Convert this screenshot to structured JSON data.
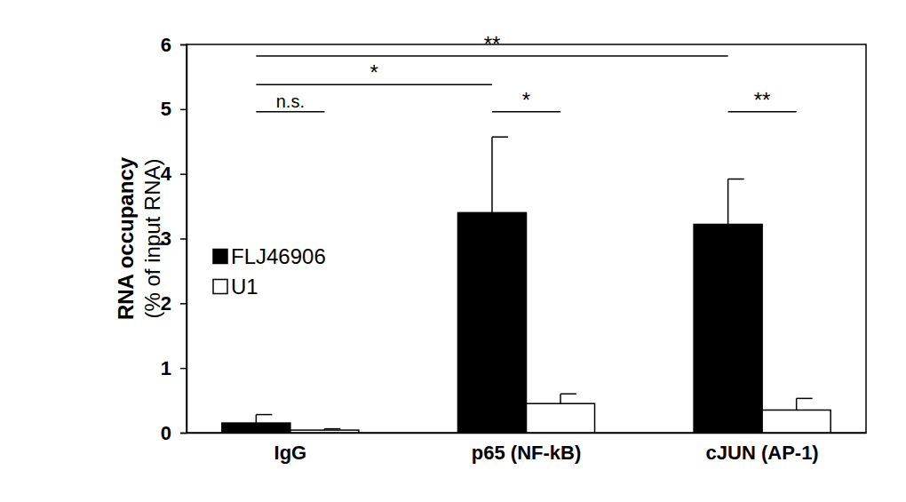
{
  "chart_data": {
    "type": "bar",
    "y_label": [
      "RNA occupancy",
      "(% of input RNA)"
    ],
    "categories": [
      "IgG",
      "p65 (NF-kB)",
      "cJUN (AP-1)"
    ],
    "series": [
      {
        "name": "FLJ46906",
        "color": "#000000",
        "values": [
          0.15,
          3.4,
          3.22
        ],
        "errors": [
          0.13,
          1.17,
          0.7
        ]
      },
      {
        "name": "U1",
        "color": "#ffffff",
        "values": [
          0.04,
          0.45,
          0.35
        ],
        "errors": [
          0.02,
          0.15,
          0.18
        ]
      }
    ],
    "ylim": [
      0,
      6
    ],
    "yticks": [
      0,
      1,
      2,
      3,
      4,
      5,
      6
    ],
    "legend": "left",
    "annotations": [
      {
        "text": "n.s.",
        "from": [
          "IgG",
          "FLJ46906"
        ],
        "to": [
          "IgG",
          "U1"
        ],
        "y": 4.96
      },
      {
        "text": "*",
        "from": [
          "IgG",
          "FLJ46906"
        ],
        "to": [
          "p65 (NF-kB)",
          "FLJ46906"
        ],
        "y": 5.38
      },
      {
        "text": "**",
        "from": [
          "IgG",
          "FLJ46906"
        ],
        "to": [
          "cJUN (AP-1)",
          "FLJ46906"
        ],
        "y": 5.82
      },
      {
        "text": "*",
        "from": [
          "p65 (NF-kB)",
          "FLJ46906"
        ],
        "to": [
          "p65 (NF-kB)",
          "U1"
        ],
        "y": 4.96
      },
      {
        "text": "**",
        "from": [
          "cJUN (AP-1)",
          "FLJ46906"
        ],
        "to": [
          "cJUN (AP-1)",
          "U1"
        ],
        "y": 4.96
      }
    ]
  }
}
